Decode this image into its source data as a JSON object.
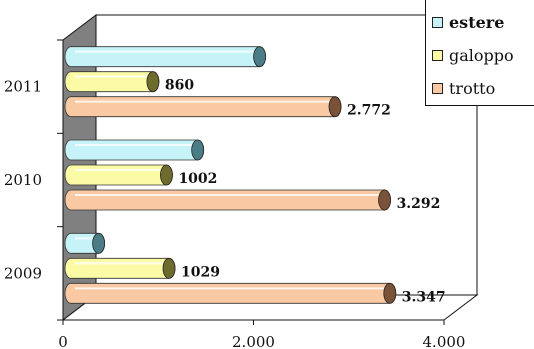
{
  "chart_data": {
    "type": "bar",
    "orientation": "horizontal",
    "style": "3d-cylinder",
    "categories": [
      "2011",
      "2010",
      "2009"
    ],
    "series": [
      {
        "name": "estere",
        "color": "#c6f3f7",
        "edge": "#4a7d86",
        "values": [
          1980,
          1330,
          290
        ],
        "labels": [
          "",
          "",
          ""
        ]
      },
      {
        "name": "galoppo",
        "color": "#fbfba6",
        "edge": "#6f6b2d",
        "values": [
          860,
          1002,
          1029
        ],
        "labels": [
          "860",
          "1002",
          "1029"
        ]
      },
      {
        "name": "trotto",
        "color": "#f8c9a3",
        "edge": "#7a5238",
        "values": [
          2772,
          3292,
          3347
        ],
        "labels": [
          "2.772",
          "3.292",
          "3.347"
        ]
      }
    ],
    "xlim": [
      0,
      4000
    ],
    "x_ticks": [
      0,
      2000,
      4000
    ],
    "x_tick_labels": [
      "0",
      "2.000",
      "4.000"
    ],
    "legend": {
      "placement": "top-right",
      "order": [
        "estere",
        "galoppo",
        "trotto"
      ],
      "bold": [
        "estere"
      ]
    },
    "wall_color": "#808080"
  }
}
